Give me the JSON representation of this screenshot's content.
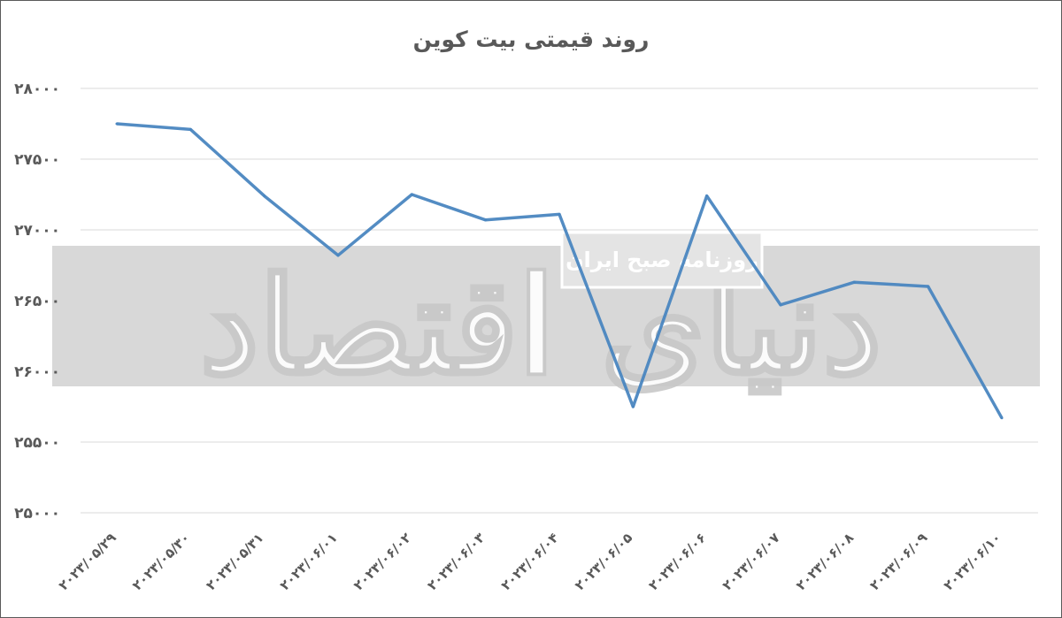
{
  "watermark": {
    "main_text": "دنیای اقتصاد",
    "sub_text": "روزنامه صبح ایران"
  },
  "chart_data": {
    "type": "line",
    "title": "روند قیمتی بیت کوین",
    "xlabel": "",
    "ylabel": "",
    "ylim": [
      25000,
      28000
    ],
    "yticks": [
      25000,
      25500,
      26000,
      26500,
      27000,
      27500,
      28000
    ],
    "ytick_labels": [
      "۲۵۰۰۰",
      "۲۵۵۰۰",
      "۲۶۰۰۰",
      "۲۶۵۰۰",
      "۲۷۰۰۰",
      "۲۷۵۰۰",
      "۲۸۰۰۰"
    ],
    "categories": [
      "۲۰۲۳/۰۵/۲۹",
      "۲۰۲۳/۰۵/۳۰",
      "۲۰۲۳/۰۵/۳۱",
      "۲۰۲۳/۰۶/۰۱",
      "۲۰۲۳/۰۶/۰۲",
      "۲۰۲۳/۰۶/۰۳",
      "۲۰۲۳/۰۶/۰۴",
      "۲۰۲۳/۰۶/۰۵",
      "۲۰۲۳/۰۶/۰۶",
      "۲۰۲۳/۰۶/۰۷",
      "۲۰۲۳/۰۶/۰۸",
      "۲۰۲۳/۰۶/۰۹",
      "۲۰۲۳/۰۶/۱۰"
    ],
    "series": [
      {
        "values": [
          27750,
          27710,
          27240,
          26820,
          27250,
          27070,
          27110,
          25750,
          27240,
          26470,
          26630,
          26600,
          25670
        ],
        "color": "#4a86c0"
      }
    ],
    "grid": true,
    "legend": "none"
  }
}
